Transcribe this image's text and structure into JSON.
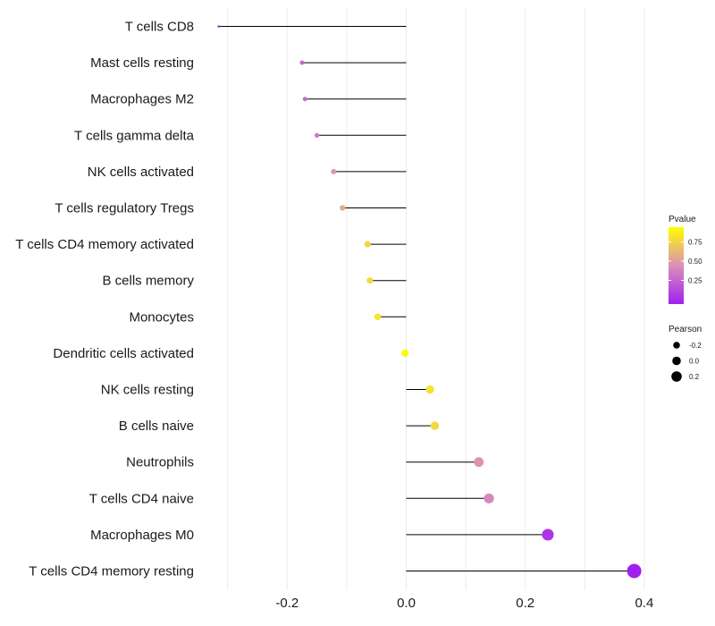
{
  "chart_data": {
    "type": "lollipop",
    "title": "",
    "xlabel": "",
    "ylabel": "",
    "xlim": [
      -0.315,
      0.41
    ],
    "xticks": [
      -0.2,
      0.0,
      0.2,
      0.4
    ],
    "xtick_labels": [
      "-0.2",
      "0.0",
      "0.2",
      "0.4"
    ],
    "grid": true,
    "categories": [
      "T cells CD8",
      "Mast cells resting",
      "Macrophages M2",
      "T cells gamma delta",
      "NK cells activated",
      "T cells regulatory  Tregs",
      "T cells CD4 memory activated",
      "B cells memory",
      "Monocytes",
      "Dendritic cells activated",
      "NK cells resting",
      "B cells naive",
      "Neutrophils",
      "T cells CD4 naive",
      "Macrophages M0",
      "T cells CD4 memory resting"
    ],
    "pearson": [
      -0.315,
      -0.175,
      -0.17,
      -0.15,
      -0.122,
      -0.107,
      -0.065,
      -0.061,
      -0.048,
      -0.002,
      0.04,
      0.048,
      0.122,
      0.139,
      0.238,
      0.383
    ],
    "pvalue": [
      0.0,
      0.32,
      0.34,
      0.42,
      0.54,
      0.62,
      0.82,
      0.84,
      0.88,
      0.99,
      0.87,
      0.83,
      0.52,
      0.47,
      0.1,
      0.0
    ],
    "legend": {
      "color": {
        "title": "Pvalue",
        "ticks": [
          0.75,
          0.5,
          0.25
        ],
        "tick_labels": [
          "0.75",
          "0.50",
          "0.25"
        ],
        "low_color": "#a020f0",
        "high_color": "#ffff00"
      },
      "size": {
        "title": "Pearson",
        "values": [
          -0.2,
          0.0,
          0.2
        ],
        "labels": [
          "-0.2",
          "0.0",
          "0.2"
        ]
      },
      "placement": "right"
    }
  }
}
